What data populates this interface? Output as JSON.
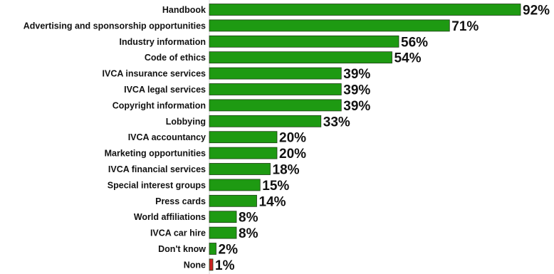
{
  "chart_data": {
    "type": "bar",
    "orientation": "horizontal",
    "title": "",
    "xlabel": "",
    "ylabel": "",
    "value_suffix": "%",
    "xlim": [
      0,
      100
    ],
    "grid": false,
    "legend": "none",
    "colors": {
      "bar": "#1e9a12",
      "highlight_bar": "#cc2222",
      "text": "#111111"
    },
    "categories": [
      "Handbook",
      "Advertising and sponsorship opportunities",
      "Industry information",
      "Code of ethics",
      "IVCA insurance services",
      "IVCA legal services",
      "Copyright information",
      "Lobbying",
      "IVCA accountancy",
      "Marketing opportunities",
      "IVCA financial services",
      "Special interest groups",
      "Press cards",
      "World affiliations",
      "IVCA car hire",
      "Don't know",
      "None"
    ],
    "values": [
      92,
      71,
      56,
      54,
      39,
      39,
      39,
      33,
      20,
      20,
      18,
      15,
      14,
      8,
      8,
      2,
      1
    ],
    "highlighted": [
      "None"
    ]
  }
}
